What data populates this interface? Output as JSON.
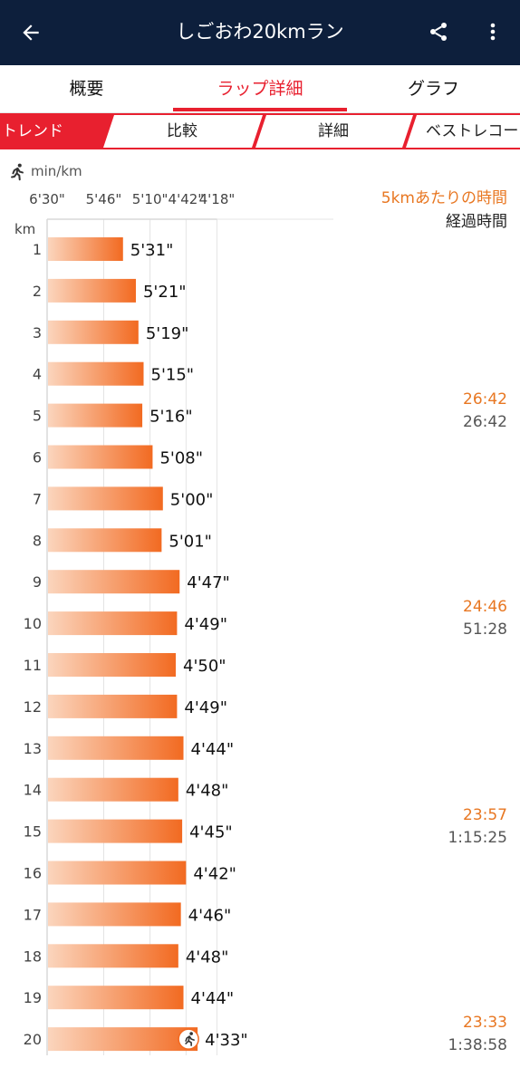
{
  "app_bar": {
    "title": "しごおわ20kmラン",
    "back_icon": "arrow-left-icon",
    "share_icon": "share-icon",
    "more_icon": "more-vertical-icon"
  },
  "tabs": [
    {
      "label": "概要",
      "active": false
    },
    {
      "label": "ラップ詳細",
      "active": true
    },
    {
      "label": "グラフ",
      "active": false
    }
  ],
  "subtabs": [
    {
      "label": "トレンド",
      "active": true
    },
    {
      "label": "比較",
      "active": false
    },
    {
      "label": "詳細",
      "active": false
    },
    {
      "label": "ベストレコー",
      "active": false
    }
  ],
  "colors": {
    "app_bar": "#0d1f3c",
    "accent": "#e8202f",
    "bar_start": "#fbd5bd",
    "bar_end": "#f26a21",
    "split_text": "#e87722"
  },
  "legend": {
    "unit": "min/km",
    "unit_icon": "runner-icon",
    "split_label": "5kmあたりの時間",
    "elapsed_label": "経過時間"
  },
  "chart_data": {
    "type": "bar",
    "orientation": "horizontal",
    "y_axis_label": "km",
    "categories": [
      "1",
      "2",
      "3",
      "4",
      "5",
      "6",
      "7",
      "8",
      "9",
      "10",
      "11",
      "12",
      "13",
      "14",
      "15",
      "16",
      "17",
      "18",
      "19",
      "20"
    ],
    "value_labels": [
      "5'31\"",
      "5'21\"",
      "5'19\"",
      "5'15\"",
      "5'16\"",
      "5'08\"",
      "5'00\"",
      "5'01\"",
      "4'47\"",
      "4'49\"",
      "4'50\"",
      "4'49\"",
      "4'44\"",
      "4'48\"",
      "4'45\"",
      "4'42\"",
      "4'46\"",
      "4'48\"",
      "4'44\"",
      "4'33\""
    ],
    "values_sec_per_km": [
      331,
      321,
      319,
      315,
      316,
      308,
      300,
      301,
      287,
      289,
      290,
      289,
      284,
      288,
      285,
      282,
      286,
      288,
      284,
      273
    ],
    "x_axis": {
      "ticks": [
        "6'30\"",
        "5'46\"",
        "5'10\"",
        "4'42\"",
        "4'18\""
      ],
      "tick_values_sec": [
        390,
        346,
        310,
        282,
        258
      ],
      "scale": "pace"
    },
    "grid": true,
    "last_bar_icon": "runner-icon",
    "segments": [
      {
        "km": 5,
        "split": "26:42",
        "elapsed": "26:42"
      },
      {
        "km": 10,
        "split": "24:46",
        "elapsed": "51:28"
      },
      {
        "km": 15,
        "split": "23:57",
        "elapsed": "1:15:25"
      },
      {
        "km": 20,
        "split": "23:33",
        "elapsed": "1:38:58"
      }
    ]
  }
}
